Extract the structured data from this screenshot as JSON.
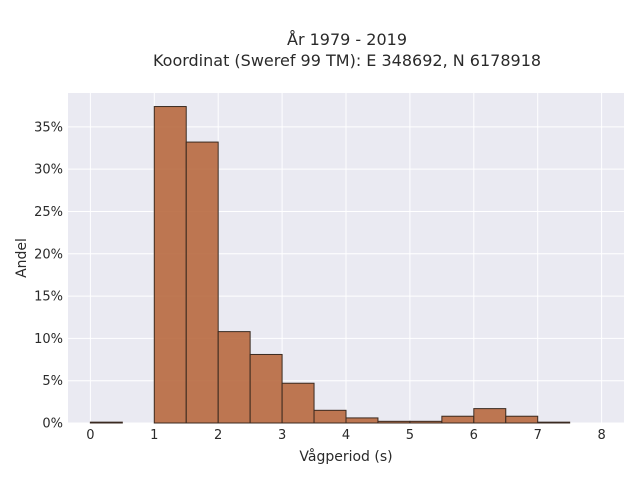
{
  "chart_data": {
    "type": "bar",
    "title_line1": "År 1979 - 2019",
    "title_line2": "Koordinat (Sweref 99 TM): E 348692, N 6178918",
    "xlabel": "Vågperiod (s)",
    "ylabel": "Andel",
    "xlim": [
      -0.35,
      8.35
    ],
    "ylim": [
      0,
      0.39
    ],
    "xticks": [
      0,
      1,
      2,
      3,
      4,
      5,
      6,
      7,
      8
    ],
    "yticks": [
      0,
      0.05,
      0.1,
      0.15,
      0.2,
      0.25,
      0.3,
      0.35
    ],
    "ytick_labels": [
      "0%",
      "5%",
      "10%",
      "15%",
      "20%",
      "25%",
      "30%",
      "35%"
    ],
    "grid": true,
    "bin_width": 0.5,
    "bins": [
      {
        "x0": 0.0,
        "value": 0.001
      },
      {
        "x0": 1.0,
        "value": 0.374
      },
      {
        "x0": 1.5,
        "value": 0.332
      },
      {
        "x0": 2.0,
        "value": 0.108
      },
      {
        "x0": 2.5,
        "value": 0.081
      },
      {
        "x0": 3.0,
        "value": 0.047
      },
      {
        "x0": 3.5,
        "value": 0.015
      },
      {
        "x0": 4.0,
        "value": 0.006
      },
      {
        "x0": 4.5,
        "value": 0.002
      },
      {
        "x0": 5.0,
        "value": 0.002
      },
      {
        "x0": 5.5,
        "value": 0.008
      },
      {
        "x0": 6.0,
        "value": 0.017
      },
      {
        "x0": 6.5,
        "value": 0.008
      },
      {
        "x0": 7.0,
        "value": 0.001
      }
    ],
    "colors": {
      "bar": "#b8693f",
      "bar_edge": "#3a2a20",
      "plot_bg": "#eaeaf2"
    }
  }
}
